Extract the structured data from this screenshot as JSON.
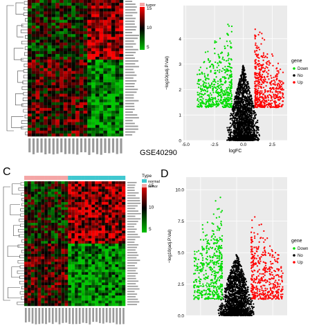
{
  "panels": [
    {
      "label": "C"
    },
    {
      "label": "D"
    }
  ],
  "dataset_label": "GSE40290",
  "chart_data": [
    {
      "id": "A",
      "type": "heatmap",
      "colorscale": {
        "low": "#00c000",
        "mid": "#000000",
        "high": "#ff0000",
        "ticks": [
          15,
          10,
          5
        ]
      },
      "legend": {
        "title": "",
        "entries": [
          {
            "name": "tumor",
            "color": "#f4a6a6"
          }
        ]
      },
      "rows": 48,
      "columns": 24,
      "pattern": "two blocks: upper rows high in tumor samples, lower rows high in normal samples"
    },
    {
      "id": "B",
      "type": "scatter",
      "subtype": "volcano",
      "xlabel": "logFC",
      "ylabel": "−log10(adj.P.Val)",
      "xlim": [
        -5.2,
        3.8
      ],
      "ylim": [
        0,
        5.3
      ],
      "xticks": [
        "-5.0",
        "-2.5",
        "0.0",
        "2.5"
      ],
      "xtick_values": [
        -5,
        -2.5,
        0,
        2.5
      ],
      "yticks": [
        "0",
        "1",
        "2",
        "3",
        "4"
      ],
      "ytick_values": [
        0,
        1,
        2,
        3,
        4
      ],
      "grid": true,
      "logfc_cutoff": 1,
      "sig_cutoff": 1.3,
      "legend": {
        "title": "gene",
        "placement": "right",
        "entries": [
          {
            "name": "Down",
            "color": "#00dd00"
          },
          {
            "name": "No",
            "color": "#000000"
          },
          {
            "name": "Up",
            "color": "#ff0000"
          }
        ]
      },
      "series": [
        {
          "name": "Down",
          "color": "#00dd00",
          "x_range": [
            -4.0,
            -1.0
          ],
          "y_range": [
            1.3,
            5.0
          ],
          "count": 500
        },
        {
          "name": "No",
          "color": "#000000",
          "x_range": [
            -1.6,
            1.6
          ],
          "y_range": [
            0,
            3.0
          ],
          "count": 1800
        },
        {
          "name": "Up",
          "color": "#ff0000",
          "x_range": [
            1.0,
            3.5
          ],
          "y_range": [
            1.3,
            4.8
          ],
          "count": 500
        }
      ]
    },
    {
      "id": "C",
      "type": "heatmap",
      "colorscale": {
        "low": "#00c000",
        "mid": "#000000",
        "high": "#ff0000",
        "ticks": [
          15,
          10,
          5
        ]
      },
      "legend": {
        "title": "Type",
        "entries": [
          {
            "name": "normal",
            "color": "#40c8d0"
          },
          {
            "name": "tumor",
            "color": "#f4a6a6"
          }
        ]
      },
      "rows": 48,
      "columns": 30,
      "pattern": "upper rows high in tumor samples, lower rows high in normal samples"
    },
    {
      "id": "D",
      "type": "scatter",
      "subtype": "volcano",
      "xlabel": "",
      "ylabel": "−log10(adj.P.Val)",
      "xlim": [
        -3.5,
        3.5
      ],
      "ylim": [
        0,
        11
      ],
      "yticks": [
        "0.0",
        "2.5",
        "5.0",
        "7.5",
        "10.0"
      ],
      "ytick_values": [
        0,
        2.5,
        5,
        7.5,
        10
      ],
      "grid": true,
      "logfc_cutoff": 1,
      "sig_cutoff": 1.3,
      "legend": {
        "title": "gene",
        "placement": "right",
        "entries": [
          {
            "name": "Down",
            "color": "#00dd00"
          },
          {
            "name": "No",
            "color": "#000000"
          },
          {
            "name": "Up",
            "color": "#ff0000"
          }
        ]
      },
      "series": [
        {
          "name": "Down",
          "color": "#00dd00",
          "x_range": [
            -3.0,
            -1.0
          ],
          "y_range": [
            1.3,
            10.5
          ],
          "count": 450
        },
        {
          "name": "No",
          "color": "#000000",
          "x_range": [
            -1.4,
            1.4
          ],
          "y_range": [
            0,
            5.0
          ],
          "count": 1600
        },
        {
          "name": "Up",
          "color": "#ff0000",
          "x_range": [
            1.0,
            3.2
          ],
          "y_range": [
            1.3,
            8.5
          ],
          "count": 420
        }
      ]
    }
  ]
}
